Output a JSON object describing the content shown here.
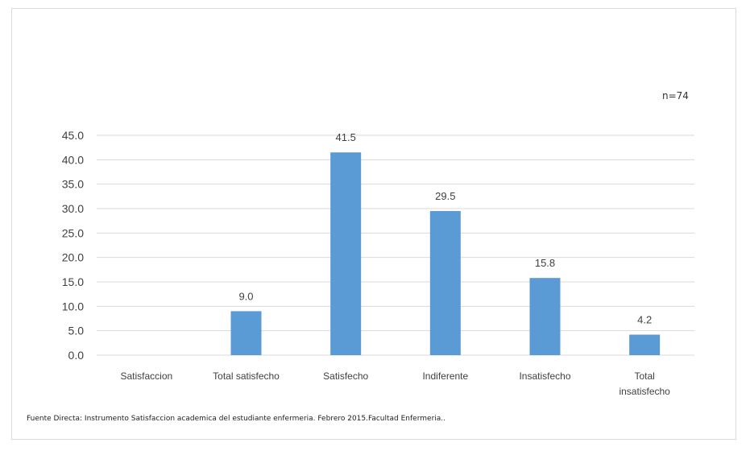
{
  "sample_note": "n=74",
  "source_note": "Fuente Directa: Instrumento  Satisfaccion academica del estudiante enfermeria. Febrero 2015.Facultad Enfermeria..",
  "chart_data": {
    "type": "bar",
    "categories": [
      "Satisfaccion",
      "Total satisfecho",
      "Satisfecho",
      "Indiferente",
      "Insatisfecho",
      [
        "Total",
        "insatisfecho"
      ]
    ],
    "values": [
      0,
      9.0,
      41.5,
      29.5,
      15.8,
      4.2
    ],
    "data_labels": [
      "",
      "9.0",
      "41.5",
      "29.5",
      "15.8",
      "4.2"
    ],
    "yticks": [
      "0.0",
      "5.0",
      "10.0",
      "15.0",
      "20.0",
      "25.0",
      "30.0",
      "35.0",
      "40.0",
      "45.0"
    ],
    "ylim": [
      0,
      45
    ],
    "grid": true,
    "bar_color": "#5b9bd5",
    "grid_color": "#d9d9d9",
    "text_color": "#404040"
  }
}
